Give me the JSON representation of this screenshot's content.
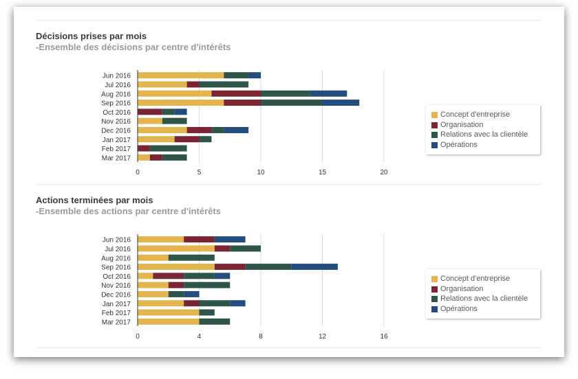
{
  "colors": {
    "concept": "#e2b54f",
    "organisation": "#7b2534",
    "relations": "#2f5449",
    "operations": "#234d7d",
    "grid": "#d9d9d9",
    "axis": "#333333",
    "text": "#333333"
  },
  "chart_data": [
    {
      "type": "bar",
      "orientation": "horizontal",
      "stacked": true,
      "title": "Décisions prises par mois",
      "subtitle": "-Ensemble des décisions par centre d'intérêts",
      "categories": [
        "Jun 2016",
        "Jul 2016",
        "Aug 2016",
        "Sep 2016",
        "Oct 2016",
        "Nov 2016",
        "Dec 2016",
        "Jan 2017",
        "Feb 2017",
        "Mar 2017"
      ],
      "series": [
        {
          "name": "Concept d'entreprise",
          "color": "#e2b54f",
          "values": [
            7,
            4,
            6,
            7,
            0,
            2,
            4,
            3,
            0,
            1
          ]
        },
        {
          "name": "Organisation",
          "color": "#7b2534",
          "values": [
            0,
            1,
            4,
            3,
            2,
            0,
            2,
            2,
            1,
            1
          ]
        },
        {
          "name": "Relations avec la clientèle",
          "color": "#2f5449",
          "values": [
            2,
            4,
            4,
            5,
            1,
            2,
            1,
            1,
            3,
            2
          ]
        },
        {
          "name": "Opérations",
          "color": "#234d7d",
          "values": [
            1,
            0,
            3,
            3,
            1,
            0,
            2,
            0,
            0,
            0
          ]
        }
      ],
      "xlim": [
        0,
        20
      ],
      "xticks": [
        0,
        5,
        10,
        15,
        20
      ],
      "grid": true,
      "legend": "right"
    },
    {
      "type": "bar",
      "orientation": "horizontal",
      "stacked": true,
      "title": "Actions terminées par mois",
      "subtitle": "-Ensemble des actions par centre d'intérêts",
      "categories": [
        "Jun 2016",
        "Jul 2016",
        "Aug 2016",
        "Sep 2016",
        "Oct 2016",
        "Nov 2016",
        "Dec 2016",
        "Jan 2017",
        "Feb 2017",
        "Mar 2017"
      ],
      "series": [
        {
          "name": "Concept d'entreprise",
          "color": "#e2b54f",
          "values": [
            3,
            5,
            2,
            5,
            1,
            2,
            2,
            3,
            4,
            4
          ]
        },
        {
          "name": "Organisation",
          "color": "#7b2534",
          "values": [
            2,
            1,
            0,
            2,
            2,
            1,
            0,
            1,
            0,
            0
          ]
        },
        {
          "name": "Relations avec la clientèle",
          "color": "#2f5449",
          "values": [
            0,
            2,
            3,
            3,
            2,
            3,
            1,
            2,
            1,
            2
          ]
        },
        {
          "name": "Opérations",
          "color": "#234d7d",
          "values": [
            2,
            0,
            0,
            3,
            1,
            0,
            1,
            1,
            0,
            0
          ]
        }
      ],
      "xlim": [
        0,
        16
      ],
      "xticks": [
        0,
        4,
        8,
        12,
        16
      ],
      "grid": true,
      "legend": "right"
    }
  ]
}
